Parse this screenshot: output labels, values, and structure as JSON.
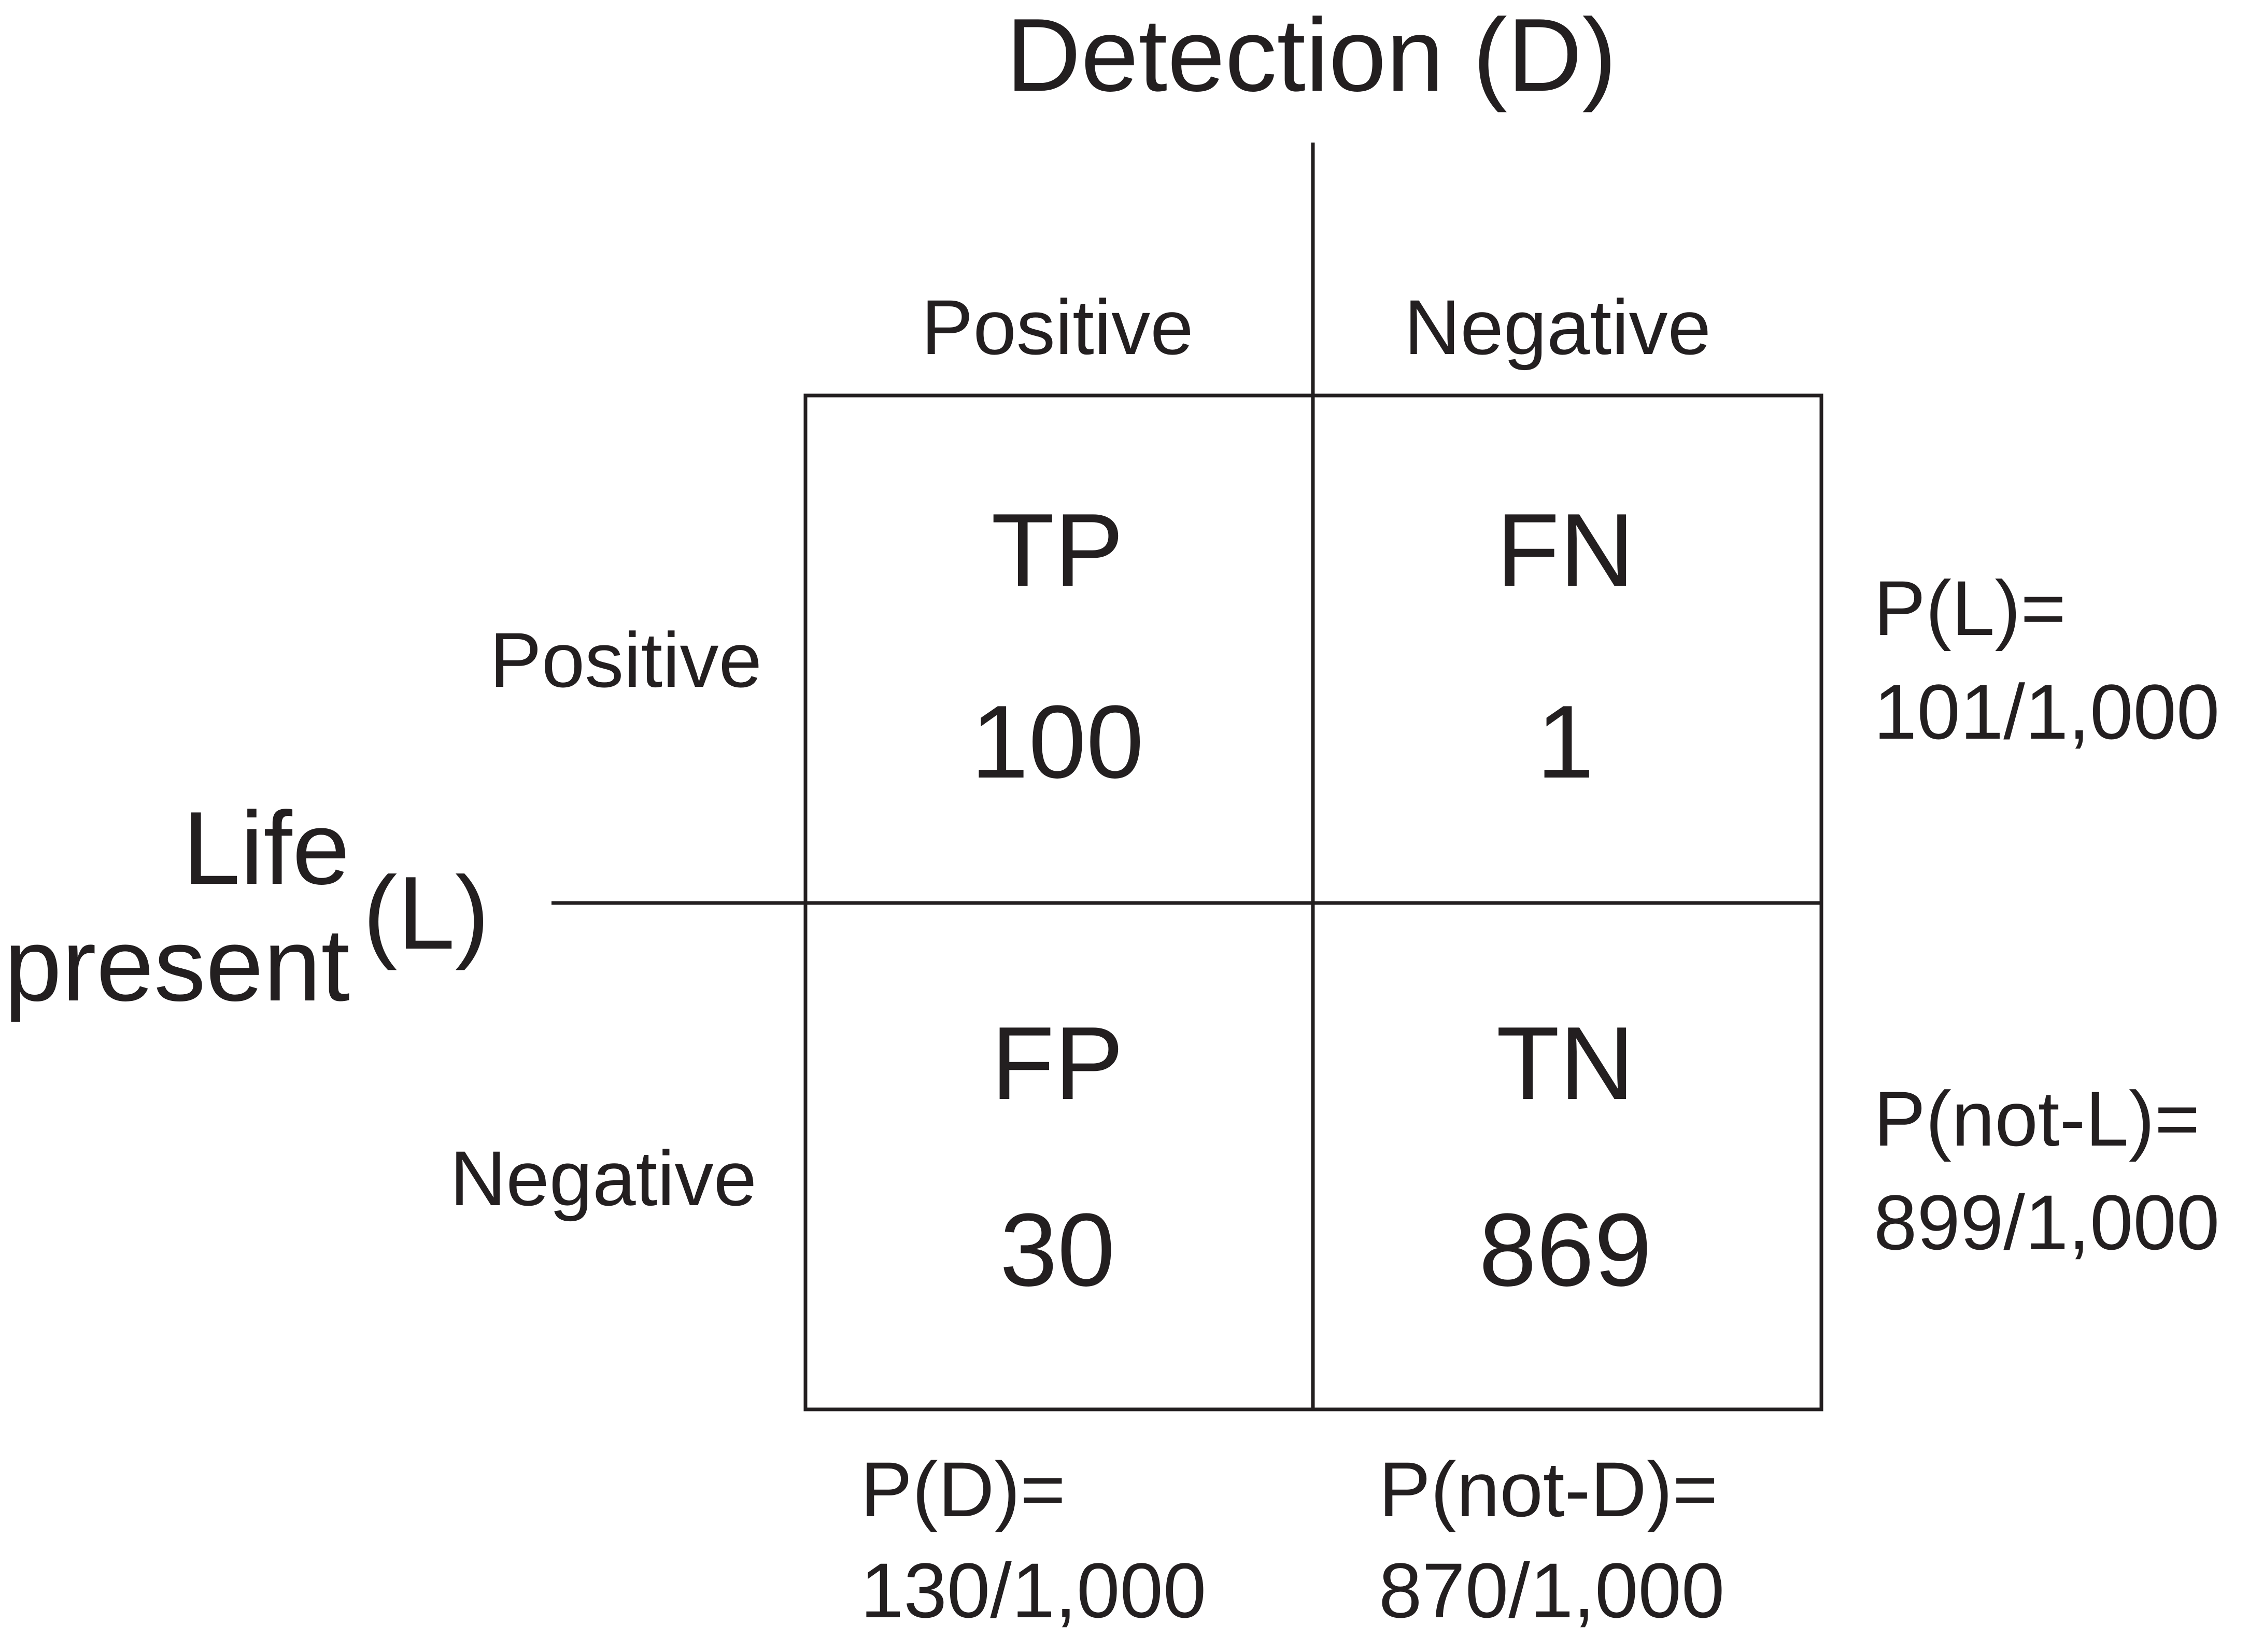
{
  "detection_axis": {
    "title": "Detection (D)"
  },
  "column_headers": [
    "Positive",
    "Negative"
  ],
  "life_axis": {
    "title_line1": "Life",
    "title_line2": "present",
    "title_suffix": "(L)"
  },
  "row_headers": [
    "Positive",
    "Negative"
  ],
  "cells": [
    {
      "code": "TP",
      "count": "100"
    },
    {
      "code": "FN",
      "count": "1"
    },
    {
      "code": "FP",
      "count": "30"
    },
    {
      "code": "TN",
      "count": "869"
    }
  ],
  "row_marginals": [
    {
      "label": "P(L)=",
      "value": "101/1,000"
    },
    {
      "label": "P(not-L)=",
      "value": "899/1,000"
    }
  ],
  "column_marginals": [
    {
      "label": "P(D)=",
      "value": "130/1,000"
    },
    {
      "label": "P(not-D)=",
      "value": "870/1,000"
    }
  ]
}
